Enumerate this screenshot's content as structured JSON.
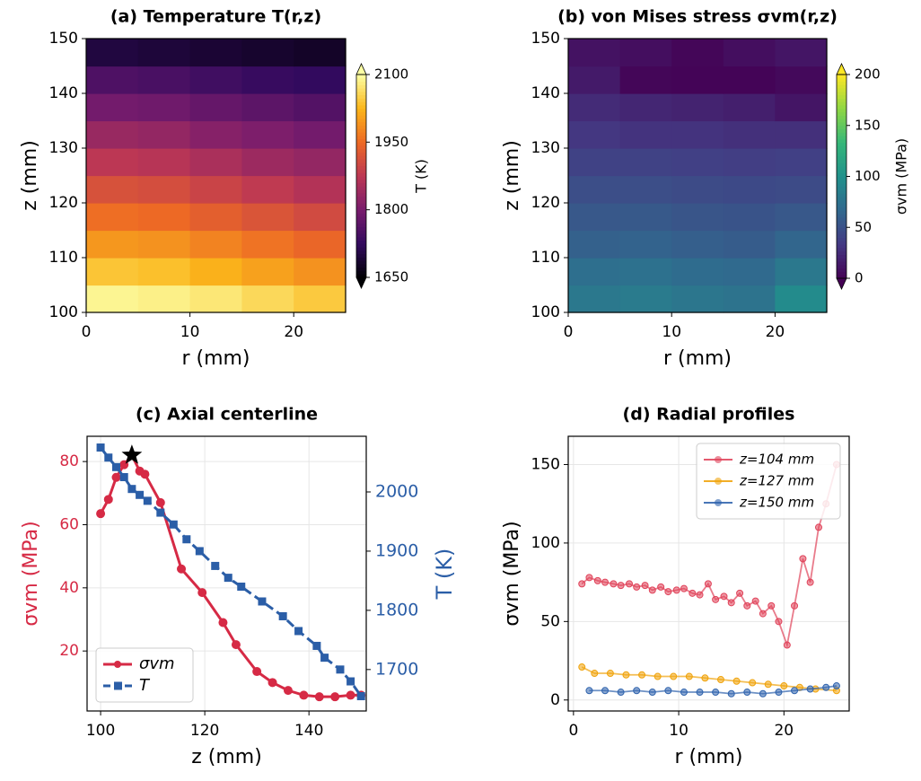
{
  "chart_data": [
    {
      "type": "contour",
      "title": "(a) Temperature T(r,z)",
      "xlabel": "r (mm)",
      "ylabel": "z (mm)",
      "xlim": [
        0,
        25
      ],
      "ylim": [
        100,
        150
      ],
      "xticks": [
        0,
        10,
        20
      ],
      "yticks": [
        100,
        110,
        120,
        130,
        140,
        150
      ],
      "r_edges": [
        0,
        5,
        10,
        15,
        20,
        25
      ],
      "z_edges": [
        100,
        105,
        110,
        115,
        120,
        125,
        130,
        135,
        140,
        145,
        150
      ],
      "values": [
        [
          2090,
          2085,
          2075,
          2060,
          2045
        ],
        [
          2040,
          2035,
          2020,
          2005,
          1990
        ],
        [
          1995,
          1990,
          1975,
          1960,
          1945
        ],
        [
          1955,
          1950,
          1935,
          1920,
          1905
        ],
        [
          1915,
          1910,
          1895,
          1880,
          1865
        ],
        [
          1875,
          1870,
          1855,
          1840,
          1830
        ],
        [
          1835,
          1830,
          1815,
          1805,
          1795
        ],
        [
          1795,
          1790,
          1780,
          1770,
          1760
        ],
        [
          1755,
          1750,
          1740,
          1730,
          1725
        ],
        [
          1700,
          1695,
          1690,
          1685,
          1680
        ]
      ],
      "colormap": "inferno",
      "cbar_label": "T (K)",
      "cbar_lim": [
        1650,
        2100
      ],
      "cbar_ticks": [
        1650,
        1800,
        1950,
        2100
      ]
    },
    {
      "type": "contour",
      "title": "(b) von Mises stress σvm(r,z)",
      "xlabel": "r (mm)",
      "ylabel": "z (mm)",
      "xlim": [
        0,
        25
      ],
      "ylim": [
        100,
        150
      ],
      "xticks": [
        0,
        10,
        20
      ],
      "yticks": [
        100,
        110,
        120,
        130,
        140,
        150
      ],
      "r_edges": [
        0,
        5,
        10,
        15,
        20,
        25
      ],
      "z_edges": [
        100,
        105,
        110,
        115,
        120,
        125,
        130,
        135,
        140,
        145,
        150
      ],
      "values": [
        [
          80,
          82,
          78,
          76,
          95
        ],
        [
          72,
          74,
          70,
          68,
          80
        ],
        [
          62,
          63,
          60,
          58,
          65
        ],
        [
          55,
          56,
          53,
          52,
          55
        ],
        [
          48,
          48,
          46,
          45,
          46
        ],
        [
          40,
          40,
          38,
          37,
          38
        ],
        [
          32,
          30,
          30,
          28,
          28
        ],
        [
          25,
          22,
          20,
          18,
          12
        ],
        [
          15,
          3,
          2,
          2,
          5
        ],
        [
          10,
          8,
          3,
          8,
          12
        ]
      ],
      "colormap": "viridis",
      "cbar_label": "σvm (MPa)",
      "cbar_lim": [
        0,
        200
      ],
      "cbar_ticks": [
        0,
        50,
        100,
        150,
        200
      ]
    },
    {
      "type": "line",
      "title": "(c) Axial centerline",
      "xlabel": "z (mm)",
      "ylabel": "σvm (MPa)",
      "y2label": "T (K)",
      "xlim": [
        97.4,
        151
      ],
      "ylim": [
        1,
        88
      ],
      "y2lim": [
        1630,
        2094
      ],
      "xticks": [
        100,
        120,
        140
      ],
      "yticks": [
        20,
        40,
        60,
        80
      ],
      "y2ticks": [
        1700,
        1800,
        1900,
        2000
      ],
      "grid": true,
      "legend": "lower left",
      "peak_marker": "star",
      "series": [
        {
          "name": "σvm",
          "color": "#d62a45",
          "marker": "circle",
          "dash": false,
          "x": [
            100,
            101.5,
            103,
            104.5,
            106,
            107.5,
            108.5,
            111.5,
            115.5,
            119.5,
            123.5,
            126,
            130,
            133,
            136,
            139,
            142,
            145,
            148,
            150
          ],
          "values": [
            63.5,
            68,
            75,
            79,
            82,
            77,
            76,
            67,
            46,
            38.5,
            29,
            22,
            13.5,
            10,
            7.5,
            6,
            5.5,
            5.5,
            6,
            6
          ]
        },
        {
          "name": "T",
          "color": "#2b5ea7",
          "marker": "square",
          "dash": true,
          "axis": "y2",
          "x": [
            100,
            101.5,
            103,
            104.5,
            106,
            107.5,
            109,
            111.5,
            114,
            116.5,
            119,
            122,
            124.5,
            127,
            131,
            135,
            138,
            141.5,
            143,
            146,
            148,
            150
          ],
          "values": [
            2075,
            2058,
            2042,
            2025,
            2005,
            1995,
            1985,
            1965,
            1945,
            1920,
            1900,
            1875,
            1855,
            1840,
            1815,
            1790,
            1765,
            1740,
            1720,
            1700,
            1680,
            1655
          ]
        }
      ]
    },
    {
      "type": "line",
      "title": "(d) Radial profiles",
      "xlabel": "r (mm)",
      "ylabel": "σvm (MPa)",
      "xlim": [
        -0.5,
        26.2
      ],
      "ylim": [
        -7,
        168
      ],
      "xticks": [
        0,
        10,
        20
      ],
      "yticks": [
        0,
        50,
        100,
        150
      ],
      "grid": true,
      "legend": "upper right",
      "series": [
        {
          "name": "z=104 mm",
          "color": "#e0435a",
          "marker": "circle",
          "dash": false,
          "x": [
            0.8,
            1.5,
            2.3,
            3,
            3.8,
            4.5,
            5.3,
            6,
            6.8,
            7.5,
            8.3,
            9,
            9.8,
            10.5,
            11.3,
            12,
            12.8,
            13.5,
            14.3,
            15,
            15.8,
            16.5,
            17.3,
            18,
            18.8,
            19.5,
            20.3,
            21,
            21.8,
            22.5,
            23.3,
            24,
            25
          ],
          "values": [
            74,
            78,
            76,
            75,
            74,
            73,
            74,
            72,
            73,
            70,
            72,
            69,
            70,
            71,
            68,
            67,
            74,
            64,
            66,
            62,
            68,
            60,
            63,
            55,
            60,
            50,
            35,
            60,
            90,
            75,
            110,
            125,
            150
          ]
        },
        {
          "name": "z=127 mm",
          "color": "#f0a30a",
          "marker": "circle",
          "dash": false,
          "x": [
            0.8,
            2,
            3.5,
            5,
            6.5,
            8,
            9.5,
            11,
            12.5,
            14,
            15.5,
            17,
            18.5,
            20,
            21.5,
            23,
            25
          ],
          "values": [
            21,
            17,
            17,
            16,
            16,
            15,
            15,
            15,
            14,
            13,
            12,
            11,
            10,
            9,
            8,
            7,
            6
          ]
        },
        {
          "name": "z=150 mm",
          "color": "#2f63ad",
          "marker": "circle",
          "dash": false,
          "x": [
            1.5,
            3,
            4.5,
            6,
            7.5,
            9,
            10.5,
            12,
            13.5,
            15,
            16.5,
            18,
            19.5,
            21,
            22.5,
            24,
            25
          ],
          "values": [
            6,
            6,
            5,
            6,
            5,
            6,
            5,
            5,
            5,
            4,
            5,
            4,
            5,
            6,
            7,
            8,
            9
          ]
        }
      ]
    }
  ]
}
